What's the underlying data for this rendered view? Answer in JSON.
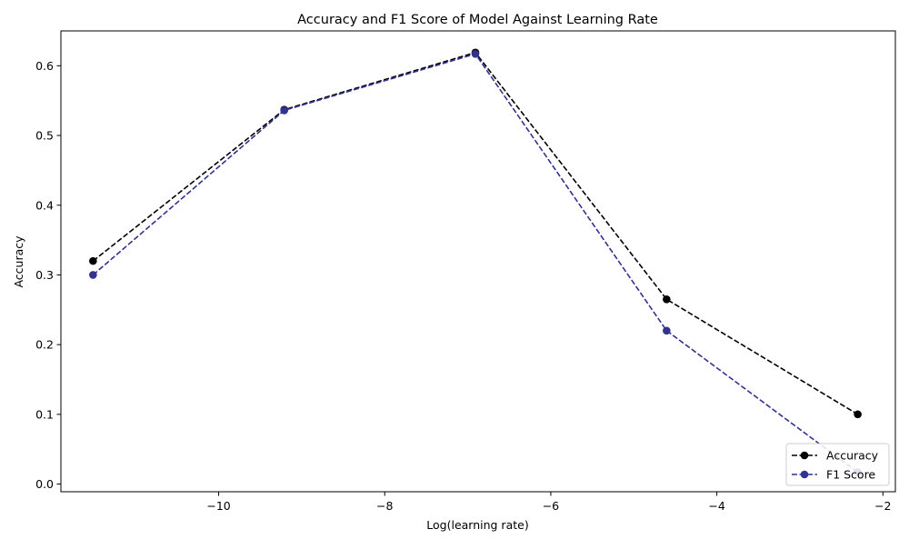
{
  "chart_data": {
    "type": "line",
    "title": "Accuracy and F1 Score of Model Against Learning Rate",
    "xlabel": "Log(learning rate)",
    "ylabel": "Accuracy",
    "x": [
      -11.513,
      -9.21,
      -6.908,
      -4.605,
      -2.303
    ],
    "xlim": [
      -11.9,
      -1.85
    ],
    "ylim": [
      -0.011,
      0.65
    ],
    "x_ticks": [
      -10,
      -8,
      -6,
      -4,
      -2
    ],
    "x_tick_labels": [
      "−10",
      "−8",
      "−6",
      "−4",
      "−2"
    ],
    "y_ticks": [
      0.0,
      0.1,
      0.2,
      0.3,
      0.4,
      0.5,
      0.6
    ],
    "y_tick_labels": [
      "0.0",
      "0.1",
      "0.2",
      "0.3",
      "0.4",
      "0.5",
      "0.6"
    ],
    "grid": false,
    "legend_position": "bottom-right",
    "series": [
      {
        "name": "Accuracy",
        "values": [
          0.32,
          0.537,
          0.619,
          0.265,
          0.1
        ],
        "color": "#000000",
        "line_style": "dashed",
        "marker": "circle"
      },
      {
        "name": "F1 Score",
        "values": [
          0.3,
          0.536,
          0.617,
          0.22,
          0.017
        ],
        "color": "#32328f",
        "line_style": "dashed",
        "marker": "circle"
      }
    ]
  }
}
